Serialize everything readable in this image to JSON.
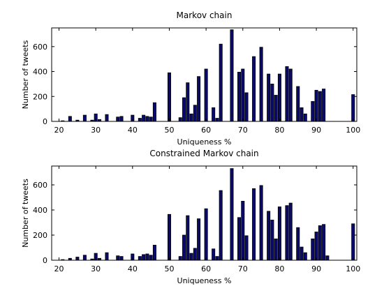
{
  "chart_data": [
    {
      "type": "bar",
      "title": "Markov chain",
      "xlabel": "Uniqueness %",
      "ylabel": "Number of tweets",
      "xlim": [
        18,
        101
      ],
      "ylim": [
        0,
        750
      ],
      "xticks": [
        20,
        30,
        40,
        50,
        60,
        70,
        80,
        90,
        100
      ],
      "yticks": [
        0,
        200,
        400,
        600
      ],
      "grid": false,
      "x": [
        21,
        23,
        25,
        27,
        29,
        30,
        31,
        33,
        35,
        36,
        37,
        38,
        40,
        41,
        42,
        43,
        44,
        45,
        46,
        48,
        50,
        51,
        52,
        53,
        54,
        55,
        56,
        57,
        58,
        60,
        61,
        62,
        63,
        64,
        65,
        66,
        67,
        68,
        69,
        70,
        71,
        72,
        73,
        74,
        75,
        76,
        77,
        78,
        79,
        80,
        81,
        82,
        83,
        84,
        85,
        86,
        87,
        88,
        89,
        90,
        91,
        92,
        93,
        95,
        96,
        97,
        98,
        100
      ],
      "values": [
        5,
        40,
        10,
        50,
        10,
        60,
        15,
        55,
        0,
        35,
        40,
        0,
        50,
        0,
        25,
        50,
        40,
        35,
        150,
        0,
        390,
        0,
        0,
        30,
        190,
        310,
        60,
        130,
        360,
        420,
        0,
        110,
        25,
        620,
        0,
        0,
        735,
        0,
        395,
        420,
        230,
        0,
        520,
        0,
        595,
        0,
        380,
        300,
        210,
        380,
        0,
        440,
        420,
        0,
        280,
        110,
        60,
        0,
        160,
        250,
        240,
        260,
        0,
        0,
        0,
        0,
        0,
        215
      ]
    },
    {
      "type": "bar",
      "title": "Constrained Markov chain",
      "xlabel": "Uniqueness %",
      "ylabel": "Number of tweets",
      "xlim": [
        18,
        101
      ],
      "ylim": [
        0,
        750
      ],
      "xticks": [
        20,
        30,
        40,
        50,
        60,
        70,
        80,
        90,
        100
      ],
      "yticks": [
        0,
        200,
        400,
        600
      ],
      "grid": false,
      "x": [
        21,
        23,
        25,
        27,
        29,
        30,
        31,
        33,
        35,
        36,
        37,
        38,
        40,
        41,
        42,
        43,
        44,
        45,
        46,
        48,
        50,
        51,
        52,
        53,
        54,
        55,
        56,
        57,
        58,
        60,
        61,
        62,
        63,
        64,
        65,
        66,
        67,
        68,
        69,
        70,
        71,
        72,
        73,
        74,
        75,
        76,
        77,
        78,
        79,
        80,
        81,
        82,
        83,
        84,
        85,
        86,
        87,
        88,
        89,
        90,
        91,
        92,
        93,
        95,
        96,
        97,
        98,
        100
      ],
      "values": [
        5,
        15,
        25,
        40,
        10,
        55,
        15,
        60,
        0,
        35,
        30,
        0,
        50,
        0,
        30,
        45,
        50,
        40,
        120,
        0,
        365,
        0,
        0,
        30,
        200,
        355,
        55,
        95,
        330,
        410,
        0,
        90,
        30,
        555,
        0,
        0,
        730,
        0,
        340,
        470,
        195,
        0,
        570,
        0,
        595,
        0,
        390,
        320,
        170,
        425,
        0,
        435,
        455,
        0,
        260,
        105,
        60,
        0,
        170,
        225,
        275,
        285,
        35,
        0,
        0,
        0,
        0,
        290
      ]
    }
  ]
}
